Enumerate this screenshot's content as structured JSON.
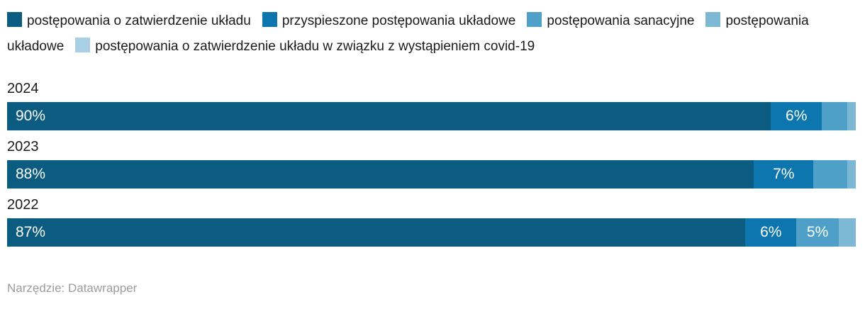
{
  "chart_data": {
    "type": "bar",
    "orientation": "horizontal",
    "stacked": true,
    "grid": false,
    "legend_position": "top",
    "value_suffix": "%",
    "label_min_value": 5,
    "xlim": [
      0,
      100
    ],
    "categories": [
      "2024",
      "2023",
      "2022"
    ],
    "series": [
      {
        "name": "postępowania o zatwierdzenie układu",
        "color": "#0b5c80",
        "values": [
          90,
          88,
          87
        ]
      },
      {
        "name": "przyspieszone postępowania układowe",
        "color": "#0e76ae",
        "values": [
          6,
          7,
          6
        ]
      },
      {
        "name": "postępowania sanacyjne",
        "color": "#4fa0c8",
        "values": [
          3,
          4,
          5
        ]
      },
      {
        "name": "postępowania układowe",
        "color": "#7db8d4",
        "values": [
          1,
          1,
          2
        ]
      },
      {
        "name": "postępowania o zatwierdzenie układu w związku z wystąpieniem covid-19",
        "color": "#a8cfe3",
        "values": [
          0,
          0,
          0
        ]
      }
    ]
  },
  "footer": {
    "text": "Narzędzie: Datawrapper"
  }
}
